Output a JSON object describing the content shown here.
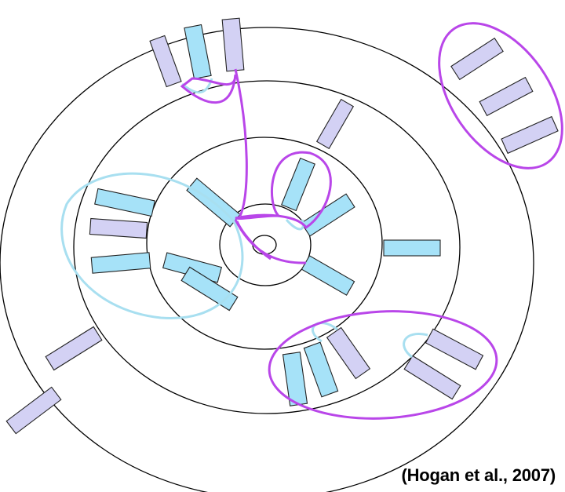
{
  "citation": "(Hogan et al., 2007)",
  "colors": {
    "ring_stroke": "#000000",
    "box_blue": "#a6e2f8",
    "box_lavender": "#d3d1f4",
    "loop_blue": "#a8dff0",
    "loop_purple": "#b946e9",
    "box_stroke": "#222222"
  }
}
